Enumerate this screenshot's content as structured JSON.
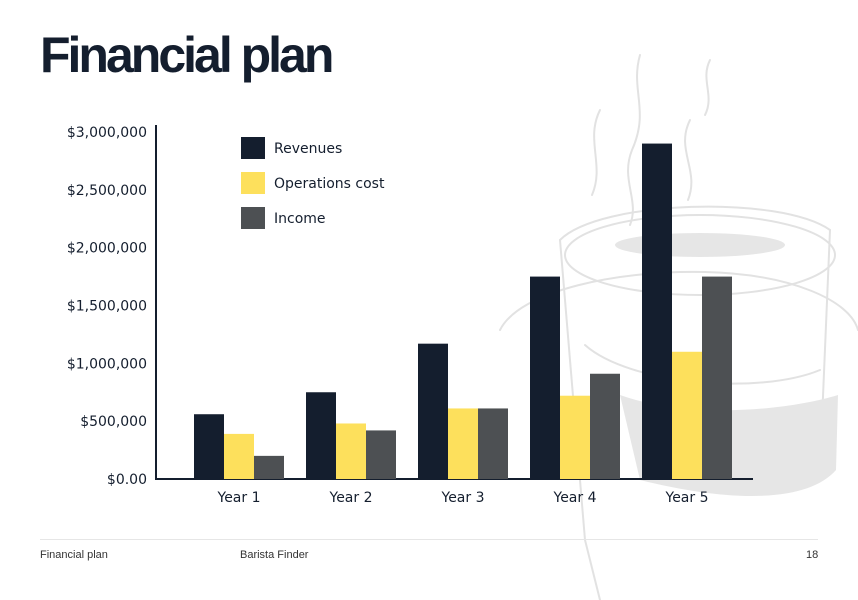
{
  "page": {
    "title": "Financial plan",
    "footer": {
      "left": "Financial plan",
      "center": "Barista Finder",
      "page_number": "18"
    }
  },
  "colors": {
    "revenues": "#141e2e",
    "operations_cost": "#fde05c",
    "income": "#4d5053",
    "axis": "#141e2e",
    "decoration": "#e2e2e2"
  },
  "chart_data": {
    "type": "bar",
    "categories": [
      "Year 1",
      "Year 2",
      "Year 3",
      "Year 4",
      "Year 5"
    ],
    "series": [
      {
        "name": "Revenues",
        "color": "#141e2e",
        "values": [
          560000,
          750000,
          1170000,
          1750000,
          2900000
        ]
      },
      {
        "name": "Operations cost",
        "color": "#fde05c",
        "values": [
          390000,
          480000,
          610000,
          720000,
          1100000
        ]
      },
      {
        "name": "Income",
        "color": "#4d5053",
        "values": [
          200000,
          420000,
          610000,
          910000,
          1750000
        ]
      }
    ],
    "y_ticks": [
      {
        "value": 0,
        "label": "$0.00"
      },
      {
        "value": 500000,
        "label": "$500,000"
      },
      {
        "value": 1000000,
        "label": "$1,000,000"
      },
      {
        "value": 1500000,
        "label": "$1,500,000"
      },
      {
        "value": 2000000,
        "label": "$2,000,000"
      },
      {
        "value": 2500000,
        "label": "$2,500,000"
      },
      {
        "value": 3000000,
        "label": "$3,000,000"
      }
    ],
    "ylim": [
      0,
      3000000
    ],
    "legend_position": "top-left",
    "grid": false
  }
}
